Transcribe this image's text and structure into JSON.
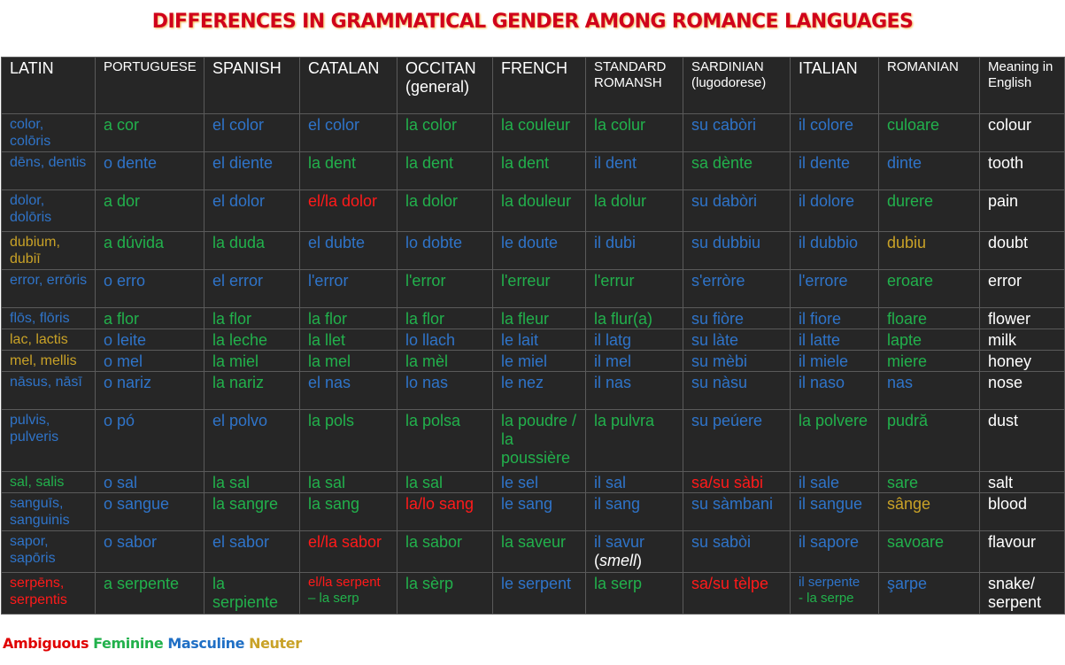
{
  "title": "DIFFERENCES IN GRAMMATICAL GENDER AMONG ROMANCE LANGUAGES",
  "headers": [
    {
      "text": "LATIN",
      "small": false
    },
    {
      "text": "PORTUGUESE",
      "small": true
    },
    {
      "text": "SPANISH",
      "small": false
    },
    {
      "text": "CATALAN",
      "small": false
    },
    {
      "text": "OCCITAN (general)",
      "small": false
    },
    {
      "text": "FRENCH",
      "small": false
    },
    {
      "text": "STANDARD ROMANSH",
      "small": true
    },
    {
      "text": "SARDINIAN (lugodorese)",
      "small": true
    },
    {
      "text": "ITALIAN",
      "small": false
    },
    {
      "text": "ROMANIAN",
      "small": true
    },
    {
      "text": "Meaning in English",
      "small": true
    }
  ],
  "rows": [
    [
      {
        "t": "color, colōris",
        "g": "M"
      },
      {
        "t": "a cor",
        "g": "F"
      },
      {
        "t": "el color",
        "g": "M"
      },
      {
        "t": "el color",
        "g": "M"
      },
      {
        "t": "la color",
        "g": "F"
      },
      {
        "t": "la couleur",
        "g": "F"
      },
      {
        "t": "la colur",
        "g": "F"
      },
      {
        "t": "su cabòri",
        "g": "M"
      },
      {
        "t": "il colore",
        "g": "M"
      },
      {
        "t": "culoare",
        "g": "F"
      },
      {
        "t": "colour",
        "g": "E"
      }
    ],
    [
      {
        "t": "dēns, dentis",
        "g": "M"
      },
      {
        "t": "o dente",
        "g": "M"
      },
      {
        "t": "el diente",
        "g": "M"
      },
      {
        "t": "la dent",
        "g": "F"
      },
      {
        "t": "la dent",
        "g": "F"
      },
      {
        "t": "la dent",
        "g": "F"
      },
      {
        "t": "il dent",
        "g": "M"
      },
      {
        "t": "sa dènte",
        "g": "F"
      },
      {
        "t": "il dente",
        "g": "M"
      },
      {
        "t": "dinte",
        "g": "M"
      },
      {
        "t": "tooth",
        "g": "E"
      }
    ],
    [
      {
        "t": "dolor, dolōris",
        "g": "M"
      },
      {
        "t": "a dor",
        "g": "F"
      },
      {
        "t": "el dolor",
        "g": "M"
      },
      {
        "t": "el/la dolor",
        "g": "A"
      },
      {
        "t": "la dolor",
        "g": "F"
      },
      {
        "t": "la douleur",
        "g": "F"
      },
      {
        "t": "la dolur",
        "g": "F"
      },
      {
        "t": "su dabòri",
        "g": "M"
      },
      {
        "t": "il dolore",
        "g": "M"
      },
      {
        "t": "durere",
        "g": "F"
      },
      {
        "t": "pain",
        "g": "E"
      }
    ],
    [
      {
        "t": "dubium, dubiī",
        "g": "N"
      },
      {
        "t": "a dúvida",
        "g": "F"
      },
      {
        "t": "la duda",
        "g": "F"
      },
      {
        "t": "el dubte",
        "g": "M"
      },
      {
        "t": "lo dobte",
        "g": "M"
      },
      {
        "t": "le doute",
        "g": "M"
      },
      {
        "t": "il dubi",
        "g": "M"
      },
      {
        "t": "su dubbiu",
        "g": "M"
      },
      {
        "t": "il dubbio",
        "g": "M"
      },
      {
        "t": "dubiu",
        "g": "N"
      },
      {
        "t": "doubt",
        "g": "E"
      }
    ],
    [
      {
        "t": "error, errōris",
        "g": "M"
      },
      {
        "t": "o erro",
        "g": "M"
      },
      {
        "t": "el error",
        "g": "M"
      },
      {
        "t": "l'error",
        "g": "M"
      },
      {
        "t": "l'error",
        "g": "F"
      },
      {
        "t": "l'erreur",
        "g": "F"
      },
      {
        "t": "l'errur",
        "g": "F"
      },
      {
        "t": "s'erròre",
        "g": "M"
      },
      {
        "t": "l'errore",
        "g": "M"
      },
      {
        "t": "eroare",
        "g": "F"
      },
      {
        "t": "error",
        "g": "E"
      }
    ],
    [
      {
        "t": "flōs, flōris",
        "g": "M"
      },
      {
        "t": "a flor",
        "g": "F"
      },
      {
        "t": "la flor",
        "g": "F"
      },
      {
        "t": "la flor",
        "g": "F"
      },
      {
        "t": "la flor",
        "g": "F"
      },
      {
        "t": "la fleur",
        "g": "F"
      },
      {
        "t": "la flur(a)",
        "g": "F"
      },
      {
        "t": "su fiòre",
        "g": "M"
      },
      {
        "t": "il fiore",
        "g": "M"
      },
      {
        "t": "floare",
        "g": "F"
      },
      {
        "t": "flower",
        "g": "E"
      }
    ],
    [
      {
        "t": "lac, lactis",
        "g": "N"
      },
      {
        "t": "o leite",
        "g": "M"
      },
      {
        "t": "la leche",
        "g": "F"
      },
      {
        "t": "la llet",
        "g": "F"
      },
      {
        "t": "lo llach",
        "g": "M"
      },
      {
        "t": "le lait",
        "g": "M"
      },
      {
        "t": "il latg",
        "g": "M"
      },
      {
        "t": "su làte",
        "g": "M"
      },
      {
        "t": "il latte",
        "g": "M"
      },
      {
        "t": "lapte",
        "g": "F"
      },
      {
        "t": "milk",
        "g": "E"
      }
    ],
    [
      {
        "t": "mel, mellis",
        "g": "N"
      },
      {
        "t": "o mel",
        "g": "M"
      },
      {
        "t": "la miel",
        "g": "F"
      },
      {
        "t": "la mel",
        "g": "F"
      },
      {
        "t": "la mèl",
        "g": "F"
      },
      {
        "t": "le miel",
        "g": "M"
      },
      {
        "t": "il mel",
        "g": "M"
      },
      {
        "t": "su mèbi",
        "g": "M"
      },
      {
        "t": "il miele",
        "g": "M"
      },
      {
        "t": "miere",
        "g": "F"
      },
      {
        "t": "honey",
        "g": "E"
      }
    ],
    [
      {
        "t": "nāsus, nāsī",
        "g": "M"
      },
      {
        "t": "o nariz",
        "g": "M"
      },
      {
        "t": "la nariz",
        "g": "F"
      },
      {
        "t": "el nas",
        "g": "M"
      },
      {
        "t": "lo nas",
        "g": "M"
      },
      {
        "t": "le nez",
        "g": "M"
      },
      {
        "t": "il nas",
        "g": "M"
      },
      {
        "t": "su nàsu",
        "g": "M"
      },
      {
        "t": "il naso",
        "g": "M"
      },
      {
        "t": "nas",
        "g": "M"
      },
      {
        "t": "nose",
        "g": "E"
      }
    ],
    [
      {
        "t": "pulvis, pulveris",
        "g": "M"
      },
      {
        "t": "o pó",
        "g": "M"
      },
      {
        "t": "el polvo",
        "g": "M"
      },
      {
        "t": "la pols",
        "g": "F"
      },
      {
        "t": "la polsa",
        "g": "F"
      },
      {
        "t": "la poudre / la poussière",
        "g": "F"
      },
      {
        "t": "la pulvra",
        "g": "F"
      },
      {
        "t": "su peúere",
        "g": "M"
      },
      {
        "t": "la polvere",
        "g": "F"
      },
      {
        "t": "pudră",
        "g": "F"
      },
      {
        "t": "dust",
        "g": "E"
      }
    ],
    [
      {
        "t": "sal, salis",
        "g": "F"
      },
      {
        "t": "o sal",
        "g": "M"
      },
      {
        "t": "la sal",
        "g": "F"
      },
      {
        "t": "la sal",
        "g": "F"
      },
      {
        "t": "la sal",
        "g": "F"
      },
      {
        "t": "le sel",
        "g": "M"
      },
      {
        "t": "il sal",
        "g": "M"
      },
      {
        "t": "sa/su sàbi",
        "g": "A"
      },
      {
        "t": "il sale",
        "g": "M"
      },
      {
        "t": "sare",
        "g": "F"
      },
      {
        "t": "salt",
        "g": "E"
      }
    ],
    [
      {
        "t": "sanguīs, sanguinis",
        "g": "M"
      },
      {
        "t": "o sangue",
        "g": "M"
      },
      {
        "t": "la sangre",
        "g": "F"
      },
      {
        "t": "la sang",
        "g": "F"
      },
      {
        "t": "la/lo sang",
        "g": "A"
      },
      {
        "t": "le sang",
        "g": "M"
      },
      {
        "t": "il sang",
        "g": "M"
      },
      {
        "t": "su sàmbani",
        "g": "M"
      },
      {
        "t": "il sangue",
        "g": "M"
      },
      {
        "t": "sânge",
        "g": "N"
      },
      {
        "t": "blood",
        "g": "E"
      }
    ],
    [
      {
        "t": "sapor, sapōris",
        "g": "M"
      },
      {
        "t": "o sabor",
        "g": "M"
      },
      {
        "t": "el sabor",
        "g": "M"
      },
      {
        "t": "el/la sabor",
        "g": "A"
      },
      {
        "t": "la sabor",
        "g": "F"
      },
      {
        "t": "la saveur",
        "g": "F"
      },
      {
        "t": "il savur",
        "g": "M",
        "note": "(smell)"
      },
      {
        "t": "su sabòi",
        "g": "M"
      },
      {
        "t": "il sapore",
        "g": "M"
      },
      {
        "t": "savoare",
        "g": "F"
      },
      {
        "t": "flavour",
        "g": "E"
      }
    ],
    [
      {
        "t": "serpēns, serpentis",
        "g": "A"
      },
      {
        "t": "a serpente",
        "g": "F"
      },
      {
        "t": "la serpiente",
        "g": "F"
      },
      {
        "t": "el/la serpent",
        "g": "A",
        "alt": "– la serp",
        "altg": "F",
        "small": true
      },
      {
        "t": "la sèrp",
        "g": "F"
      },
      {
        "t": "le serpent",
        "g": "M"
      },
      {
        "t": "la serp",
        "g": "F"
      },
      {
        "t": "sa/su tèlpe",
        "g": "A"
      },
      {
        "t": "il serpente",
        "g": "M",
        "alt": "- la serpe",
        "altg": "F",
        "small": true
      },
      {
        "t": "şarpe",
        "g": "M"
      },
      {
        "t": "snake/ serpent",
        "g": "E"
      }
    ]
  ],
  "row_heights": [
    43,
    43,
    47,
    43,
    43,
    24,
    24,
    24,
    43,
    70,
    24,
    43,
    47,
    47
  ],
  "legend": [
    {
      "label": "Ambiguous",
      "g": "A"
    },
    {
      "label": "Feminine",
      "g": "F"
    },
    {
      "label": "Masculine",
      "g": "M"
    },
    {
      "label": "Neuter",
      "g": "N"
    }
  ]
}
